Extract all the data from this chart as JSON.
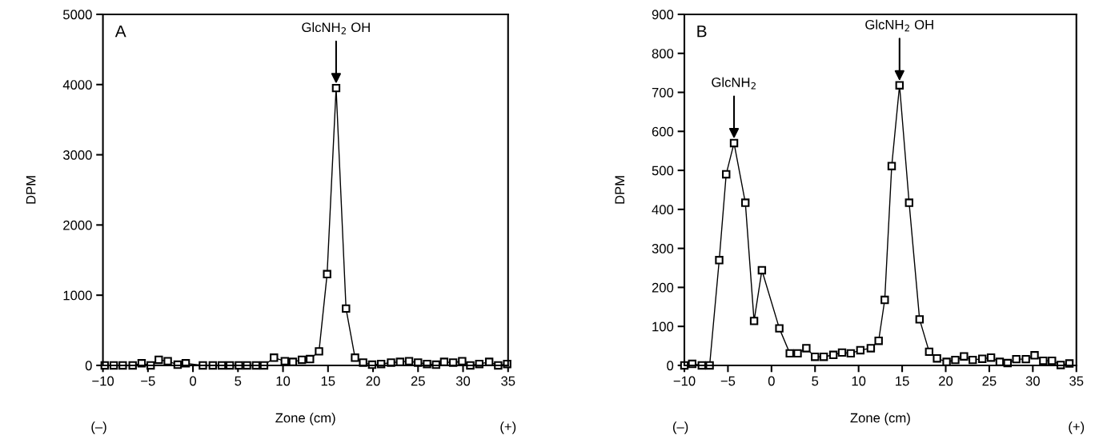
{
  "chart_data": [
    {
      "type": "line",
      "xlabel": "Zone (cm)",
      "ylabel": "DPM",
      "xlim": [
        -10,
        35
      ],
      "ylim": [
        0,
        5000
      ],
      "xticks": [
        -10,
        -5,
        0,
        5,
        10,
        15,
        20,
        25,
        30,
        35
      ],
      "yticks": [
        0,
        1000,
        2000,
        3000,
        4000,
        5000
      ],
      "marker": "square",
      "line_style": "solid",
      "grid": false,
      "legend": false,
      "series": [
        {
          "color": "#000000",
          "x": [
            -9.8,
            -8.8,
            -7.8,
            -6.7,
            -5.7,
            -4.7,
            -3.8,
            -2.8,
            -1.7,
            -0.8,
            1.1,
            2.2,
            3.2,
            4.1,
            5.1,
            6.0,
            7.0,
            7.9,
            9.0,
            10.2,
            11.1,
            12.1,
            13.0,
            14.0,
            14.9,
            15.9,
            17.0,
            18.0,
            18.9,
            19.9,
            20.9,
            22.0,
            23.0,
            24.0,
            25.0,
            26.0,
            27.0,
            27.9,
            28.9,
            29.9,
            30.8,
            31.8,
            32.9,
            33.9,
            34.9
          ],
          "values": [
            0,
            0,
            0,
            0,
            30,
            0,
            80,
            60,
            10,
            30,
            0,
            0,
            0,
            0,
            0,
            0,
            0,
            0,
            110,
            60,
            50,
            80,
            90,
            200,
            1300,
            3950,
            810,
            110,
            40,
            10,
            20,
            40,
            50,
            60,
            40,
            20,
            10,
            50,
            40,
            60,
            0,
            20,
            50,
            0,
            20
          ]
        }
      ],
      "annotations": [
        "A",
        {
          "text": "GlcNH$_{2}$ OH",
          "x": 15.9,
          "y": 3950
        },
        "(–)",
        "(+)"
      ]
    },
    {
      "type": "line",
      "xlabel": "Zone (cm)",
      "ylabel": "DPM",
      "xlim": [
        -10,
        35
      ],
      "ylim": [
        0,
        900
      ],
      "xticks": [
        -10,
        -5,
        0,
        5,
        10,
        15,
        20,
        25,
        30,
        35
      ],
      "yticks": [
        0,
        100,
        200,
        300,
        400,
        500,
        600,
        700,
        800,
        900
      ],
      "marker": "square",
      "line_style": "solid",
      "grid": false,
      "legend": false,
      "series": [
        {
          "color": "#000000",
          "x": [
            -10.0,
            -9.1,
            -8.0,
            -7.1,
            -6.0,
            -5.2,
            -4.3,
            -3.0,
            -2.0,
            -1.1,
            0.9,
            2.1,
            3.0,
            4.0,
            5.0,
            6.0,
            7.1,
            8.1,
            9.1,
            10.2,
            11.4,
            12.3,
            13.0,
            13.8,
            14.7,
            15.8,
            17.0,
            18.1,
            19.0,
            20.1,
            21.1,
            22.1,
            23.1,
            24.2,
            25.2,
            26.2,
            27.1,
            28.1,
            29.2,
            30.2,
            31.2,
            32.2,
            33.2,
            34.2
          ],
          "values": [
            0,
            4,
            0,
            0,
            270,
            490,
            570,
            417,
            114,
            244,
            95,
            31,
            31,
            44,
            22,
            22,
            27,
            33,
            31,
            39,
            44,
            63,
            168,
            511,
            718,
            417,
            118,
            35,
            18,
            9,
            14,
            23,
            14,
            17,
            20,
            9,
            6,
            16,
            16,
            26,
            12,
            12,
            1,
            5
          ]
        }
      ],
      "annotations": [
        "B",
        {
          "text": "GlcNH$_{2}$",
          "x": -4.3,
          "y": 570
        },
        {
          "text": "GlcNH$_{2}$ OH",
          "x": 14.7,
          "y": 718
        },
        "(–)",
        "(+)"
      ]
    }
  ]
}
